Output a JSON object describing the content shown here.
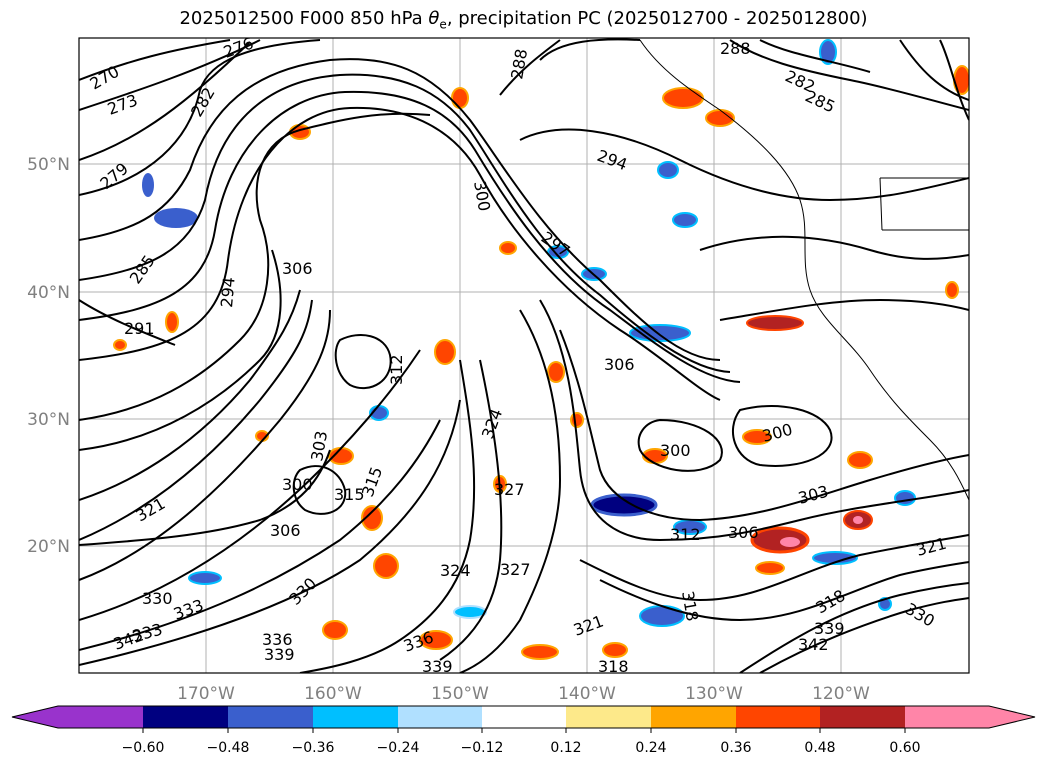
{
  "title": {
    "prefix": "2025012500 F000 850 hPa ",
    "theta_symbol": "θ",
    "theta_subscript": "e",
    "suffix": ", precipitation PC (2025012700 - 2025012800)"
  },
  "axes": {
    "lat_labels": [
      "50°N",
      "40°N",
      "30°N",
      "20°N"
    ],
    "lon_labels": [
      "170°W",
      "160°W",
      "150°W",
      "140°W",
      "130°W",
      "120°W"
    ],
    "gridline_color": "#b0b0b0",
    "label_color": "#808080"
  },
  "contour_labels": [
    "270",
    "273",
    "276",
    "279",
    "282",
    "285",
    "288",
    "291",
    "294",
    "297",
    "300",
    "303",
    "306",
    "312",
    "315",
    "318",
    "321",
    "324",
    "327",
    "330",
    "333",
    "336",
    "339",
    "342",
    "282",
    "285",
    "288",
    "294",
    "300",
    "306",
    "300",
    "303",
    "306",
    "312",
    "318",
    "321",
    "330",
    "339",
    "342",
    "324",
    "327",
    "300",
    "306",
    "315",
    "321",
    "336",
    "339",
    "330",
    "333",
    "318"
  ],
  "colorbar": {
    "colors": [
      "#9933cc",
      "#000080",
      "#3a5fcd",
      "#00bfff",
      "#b0e0ff",
      "#ffffff",
      "#fde98a",
      "#ffa500",
      "#ff4500",
      "#b22222",
      "#ff85a8"
    ],
    "tick_labels": [
      "−0.60",
      "−0.48",
      "−0.36",
      "−0.24",
      "−0.12",
      "0.12",
      "0.24",
      "0.36",
      "0.48",
      "0.60"
    ],
    "extend": "both"
  }
}
